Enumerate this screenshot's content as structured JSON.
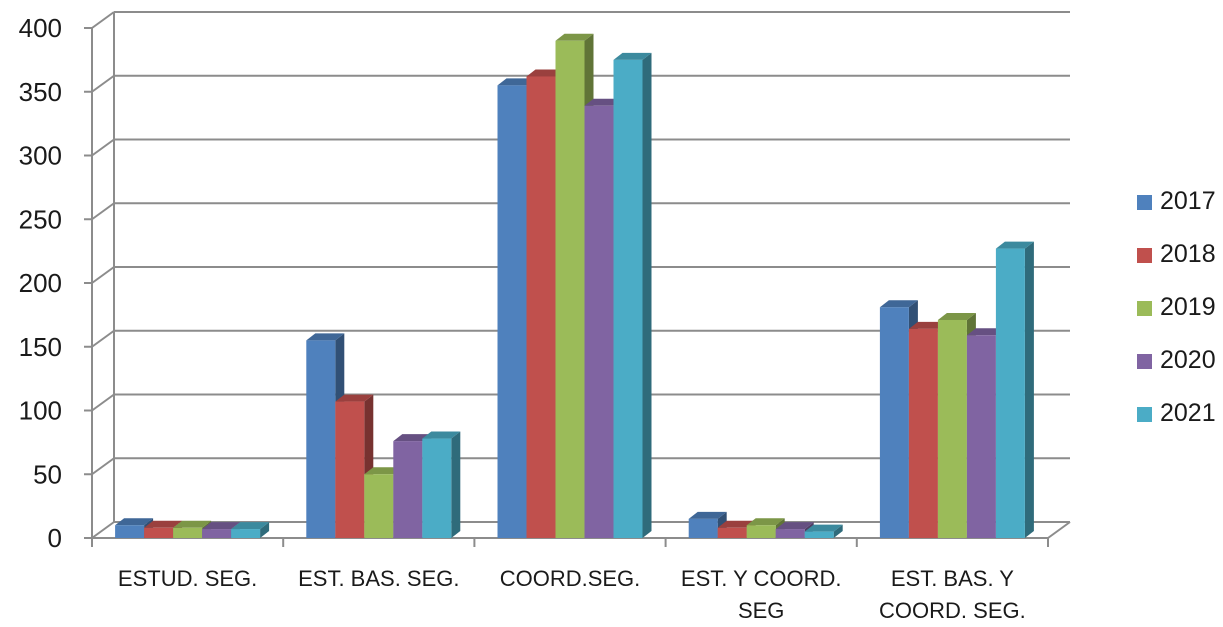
{
  "chart_data": {
    "type": "bar",
    "categories": [
      [
        "ESTUD. SEG."
      ],
      [
        "EST. BAS. SEG."
      ],
      [
        "COORD.SEG."
      ],
      [
        "EST. Y COORD.",
        "SEG"
      ],
      [
        "EST. BAS. Y",
        "COORD. SEG."
      ]
    ],
    "series": [
      {
        "name": "2017",
        "color": "#4F81BD",
        "values": [
          10,
          155,
          355,
          15,
          181
        ]
      },
      {
        "name": "2018",
        "color": "#C0504D",
        "values": [
          8,
          107,
          362,
          8,
          164
        ]
      },
      {
        "name": "2019",
        "color": "#9BBB59",
        "values": [
          8,
          50,
          390,
          10,
          171
        ]
      },
      {
        "name": "2020",
        "color": "#8064A2",
        "values": [
          7,
          76,
          339,
          7,
          159
        ]
      },
      {
        "name": "2021",
        "color": "#4BACC6",
        "values": [
          7,
          78,
          375,
          5,
          227
        ]
      }
    ],
    "ylim": [
      0,
      400
    ],
    "yticks": [
      "0",
      "50",
      "100",
      "150",
      "200",
      "250",
      "300",
      "350",
      "400"
    ],
    "xlabel": "",
    "ylabel": "",
    "title": "",
    "grid": true,
    "three_d": true,
    "legend_position": "right"
  }
}
